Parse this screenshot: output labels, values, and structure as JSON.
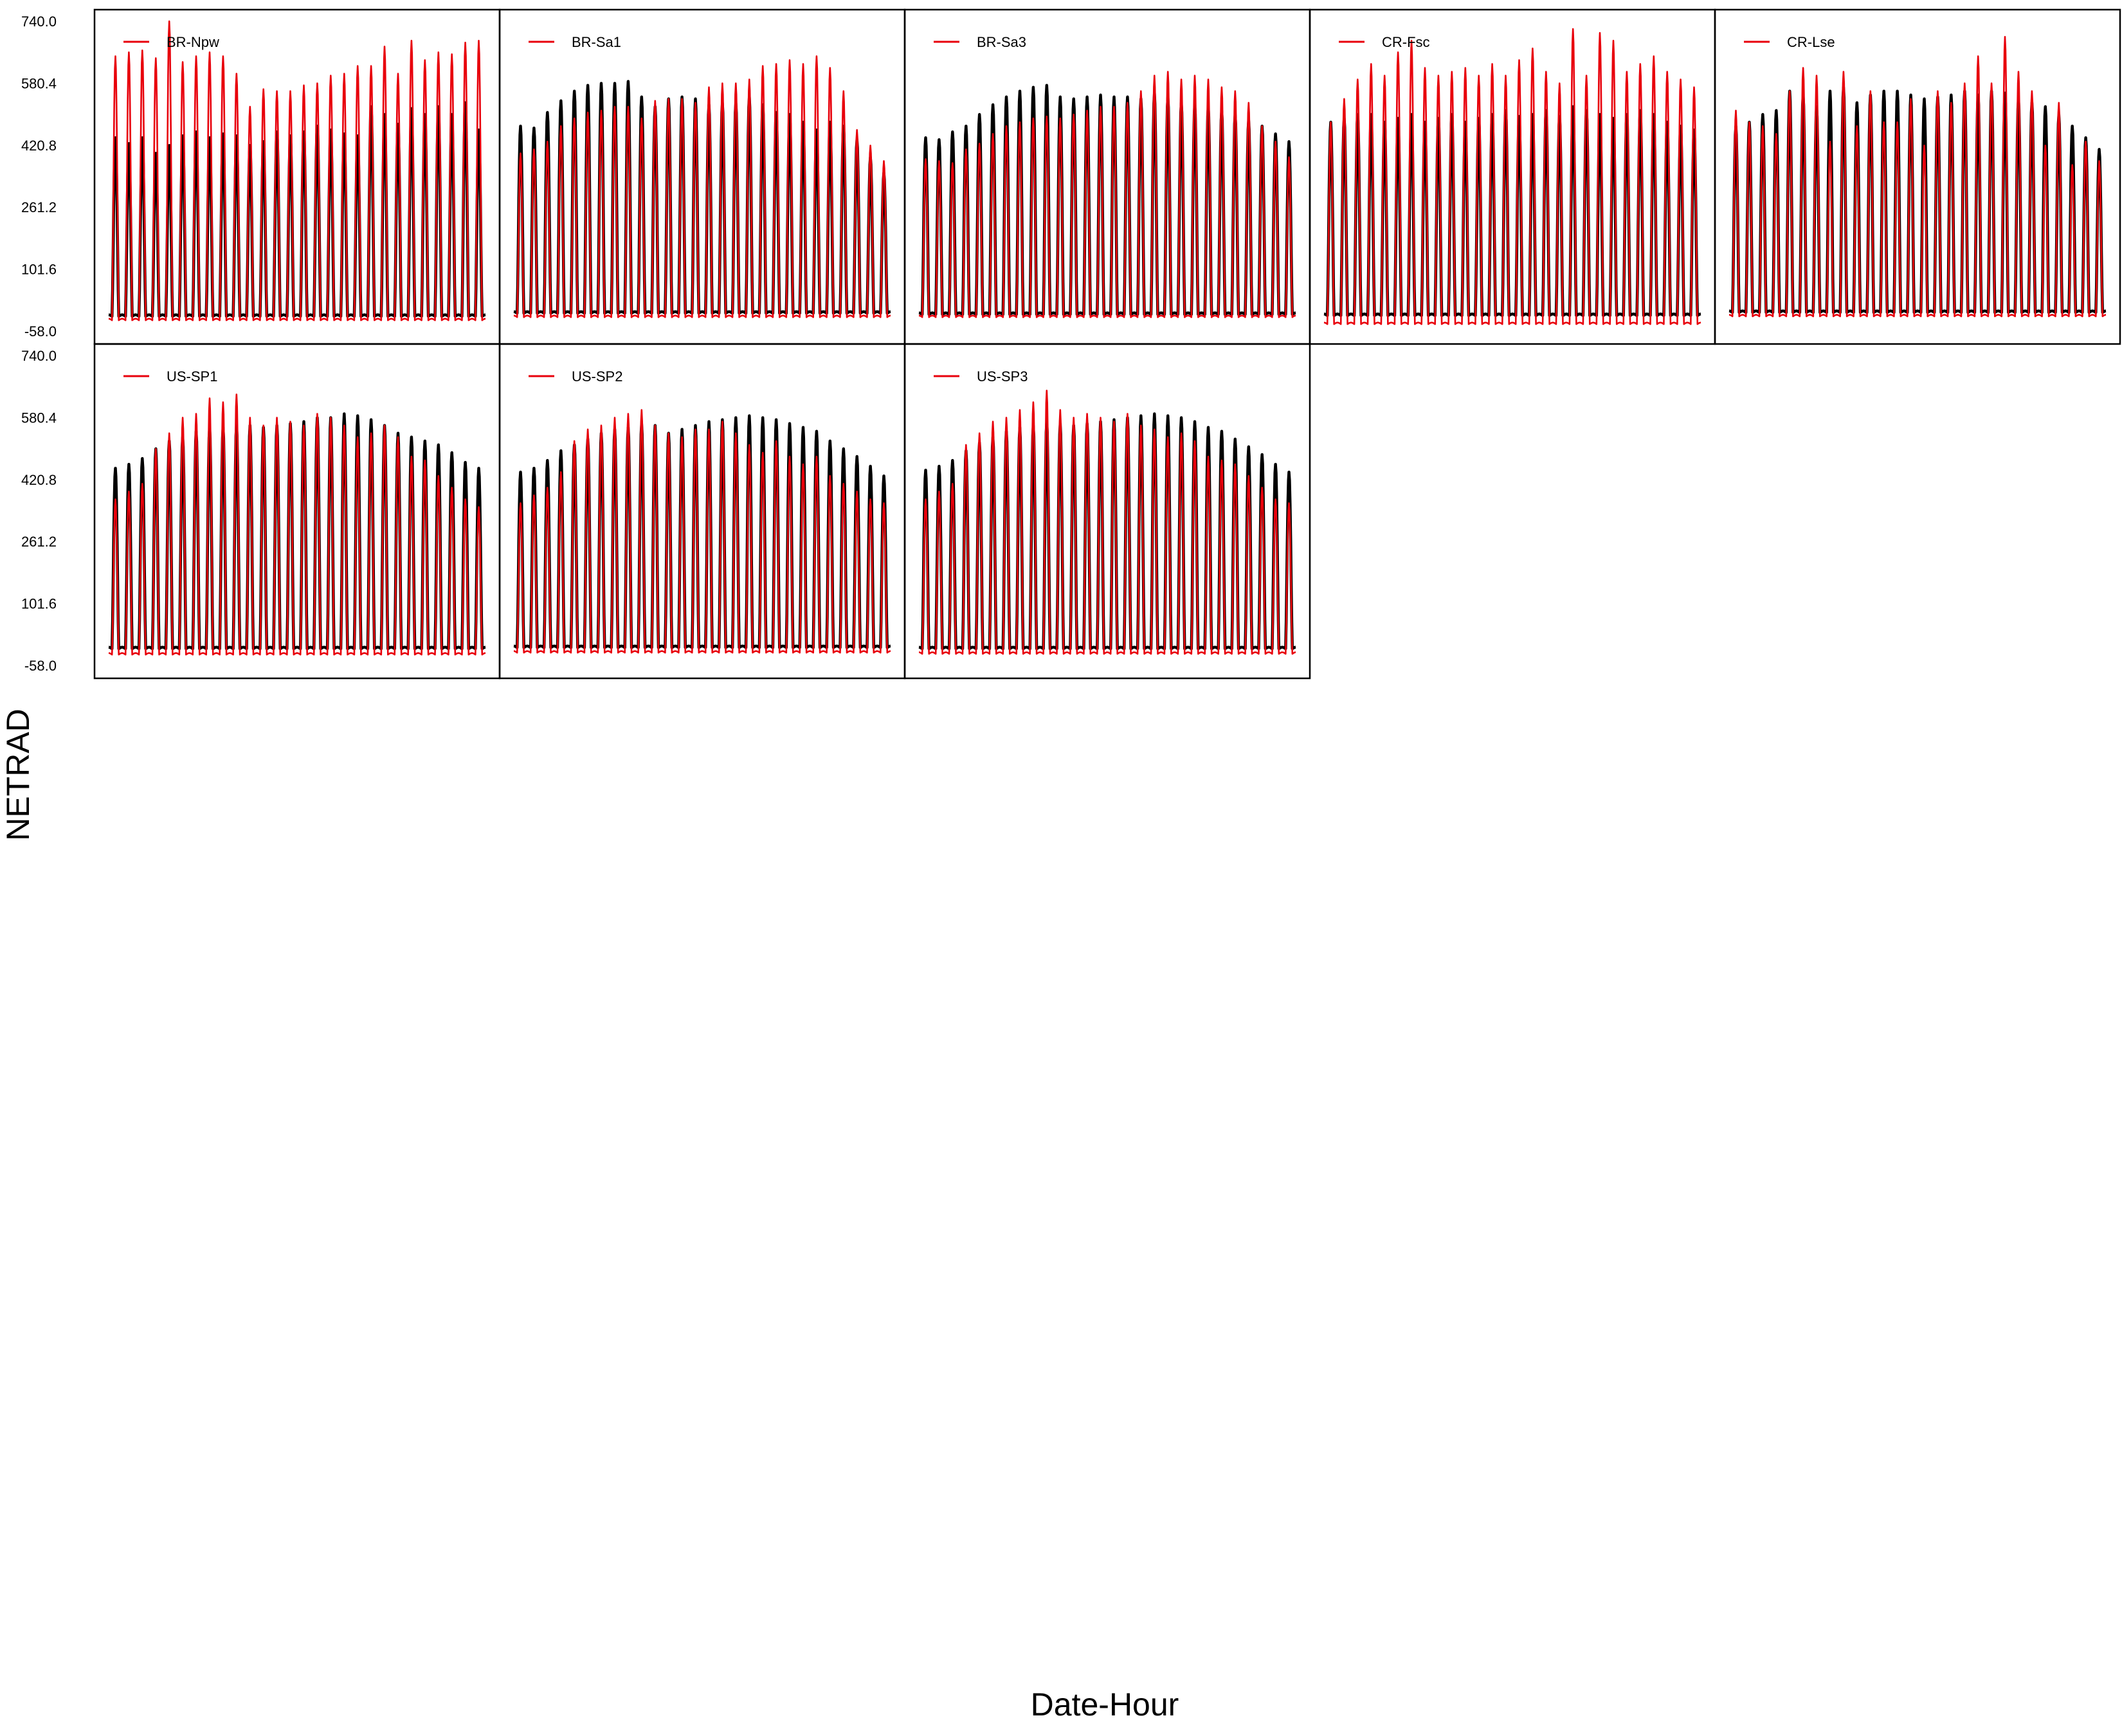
{
  "chart_data": {
    "type": "line",
    "xlabel": "Date-Hour",
    "ylabel": "NETRAD",
    "ylim": [
      -58.0,
      740.0
    ],
    "yticks": [
      "740.0",
      "580.4",
      "420.8",
      "261.2",
      "101.6",
      "-58.0"
    ],
    "grid": false,
    "days_per_panel": 28,
    "series_colors": {
      "observed": "#000000",
      "modeled": "#e8000b"
    },
    "panels": [
      {
        "site": "BR-Npw",
        "legend": "BR-Npw",
        "observed_daily_peak": [
          440,
          425,
          440,
          400,
          420,
          445,
          455,
          440,
          450,
          445,
          420,
          430,
          455,
          445,
          455,
          470,
          460,
          450,
          445,
          520,
          500,
          475,
          515,
          500,
          520,
          500,
          530,
          460
        ],
        "modeled_daily_peak": [
          650,
          660,
          665,
          645,
          740,
          635,
          650,
          660,
          650,
          605,
          520,
          565,
          560,
          560,
          575,
          580,
          600,
          605,
          625,
          625,
          675,
          605,
          690,
          640,
          660,
          655,
          685,
          690
        ],
        "observed_night_min": -20,
        "modeled_night_min": -30
      },
      {
        "site": "BR-Sa1",
        "legend": "BR-Sa1",
        "observed_daily_peak": [
          470,
          465,
          505,
          535,
          560,
          575,
          580,
          580,
          585,
          545,
          520,
          540,
          545,
          540,
          525,
          530,
          530,
          545,
          525,
          505,
          500,
          480,
          460,
          480,
          470,
          435,
          390,
          350
        ],
        "modeled_daily_peak": [
          400,
          410,
          430,
          470,
          490,
          505,
          510,
          520,
          520,
          490,
          535,
          540,
          540,
          530,
          570,
          580,
          580,
          590,
          625,
          630,
          640,
          630,
          650,
          620,
          560,
          460,
          420,
          380
        ],
        "observed_night_min": -12,
        "modeled_night_min": -22
      },
      {
        "site": "BR-Sa3",
        "legend": "BR-Sa3",
        "observed_daily_peak": [
          440,
          435,
          455,
          470,
          500,
          525,
          545,
          560,
          570,
          575,
          545,
          540,
          545,
          550,
          545,
          545,
          540,
          555,
          545,
          530,
          525,
          520,
          510,
          500,
          485,
          470,
          450,
          430
        ],
        "modeled_daily_peak": [
          385,
          380,
          375,
          410,
          425,
          450,
          470,
          480,
          490,
          495,
          490,
          500,
          510,
          520,
          520,
          530,
          560,
          600,
          610,
          590,
          600,
          590,
          570,
          560,
          530,
          470,
          430,
          390
        ],
        "observed_night_min": -15,
        "modeled_night_min": -22
      },
      {
        "site": "CR-Fsc",
        "legend": "CR-Fsc",
        "observed_daily_peak": [
          480,
          490,
          500,
          500,
          480,
          490,
          500,
          480,
          490,
          500,
          480,
          490,
          500,
          510,
          495,
          500,
          510,
          495,
          520,
          510,
          500,
          490,
          500,
          510,
          500,
          480,
          470,
          460
        ],
        "modeled_daily_peak": [
          480,
          540,
          590,
          630,
          600,
          660,
          690,
          620,
          600,
          610,
          620,
          600,
          630,
          600,
          640,
          670,
          610,
          580,
          720,
          600,
          710,
          690,
          610,
          630,
          650,
          610,
          590,
          570
        ],
        "observed_night_min": -18,
        "modeled_night_min": -40
      },
      {
        "site": "CR-Lse",
        "legend": "CR-Lse",
        "observed_daily_peak": [
          470,
          480,
          500,
          510,
          560,
          550,
          520,
          560,
          570,
          530,
          550,
          560,
          560,
          550,
          540,
          545,
          550,
          560,
          550,
          560,
          555,
          540,
          530,
          520,
          500,
          470,
          440,
          410
        ],
        "modeled_daily_peak": [
          510,
          480,
          470,
          450,
          560,
          620,
          600,
          430,
          610,
          470,
          560,
          480,
          480,
          540,
          420,
          560,
          530,
          580,
          650,
          580,
          700,
          610,
          560,
          420,
          530,
          370,
          430,
          380
        ],
        "observed_night_min": -10,
        "modeled_night_min": -20
      },
      {
        "site": "US-SP1",
        "legend": "US-SP1",
        "observed_daily_peak": [
          450,
          460,
          475,
          500,
          520,
          530,
          545,
          555,
          555,
          560,
          560,
          555,
          560,
          565,
          570,
          580,
          580,
          590,
          585,
          575,
          560,
          540,
          530,
          520,
          510,
          490,
          465,
          450
        ],
        "modeled_daily_peak": [
          370,
          390,
          410,
          500,
          540,
          580,
          590,
          630,
          620,
          640,
          580,
          560,
          580,
          570,
          560,
          590,
          580,
          560,
          530,
          540,
          560,
          530,
          480,
          470,
          430,
          400,
          370,
          350
        ],
        "observed_night_min": -15,
        "modeled_night_min": -30
      },
      {
        "site": "US-SP2",
        "legend": "US-SP2",
        "observed_daily_peak": [
          440,
          450,
          470,
          495,
          510,
          525,
          540,
          550,
          555,
          565,
          560,
          540,
          550,
          560,
          570,
          575,
          580,
          585,
          580,
          575,
          565,
          555,
          545,
          520,
          500,
          480,
          455,
          430
        ],
        "modeled_daily_peak": [
          360,
          380,
          400,
          440,
          520,
          550,
          560,
          580,
          590,
          600,
          560,
          540,
          530,
          550,
          550,
          570,
          540,
          510,
          490,
          520,
          480,
          460,
          480,
          430,
          410,
          390,
          370,
          360
        ],
        "observed_night_min": -12,
        "modeled_night_min": -25
      },
      {
        "site": "US-SP3",
        "legend": "US-SP3",
        "observed_daily_peak": [
          445,
          455,
          470,
          495,
          515,
          530,
          545,
          555,
          560,
          570,
          565,
          560,
          565,
          570,
          575,
          580,
          585,
          590,
          585,
          580,
          570,
          555,
          545,
          525,
          505,
          485,
          460,
          440
        ],
        "modeled_daily_peak": [
          370,
          390,
          410,
          510,
          540,
          570,
          580,
          600,
          620,
          650,
          600,
          580,
          590,
          580,
          570,
          590,
          560,
          550,
          530,
          540,
          520,
          480,
          470,
          460,
          430,
          400,
          370,
          360
        ],
        "observed_night_min": -15,
        "modeled_night_min": -28
      }
    ]
  }
}
